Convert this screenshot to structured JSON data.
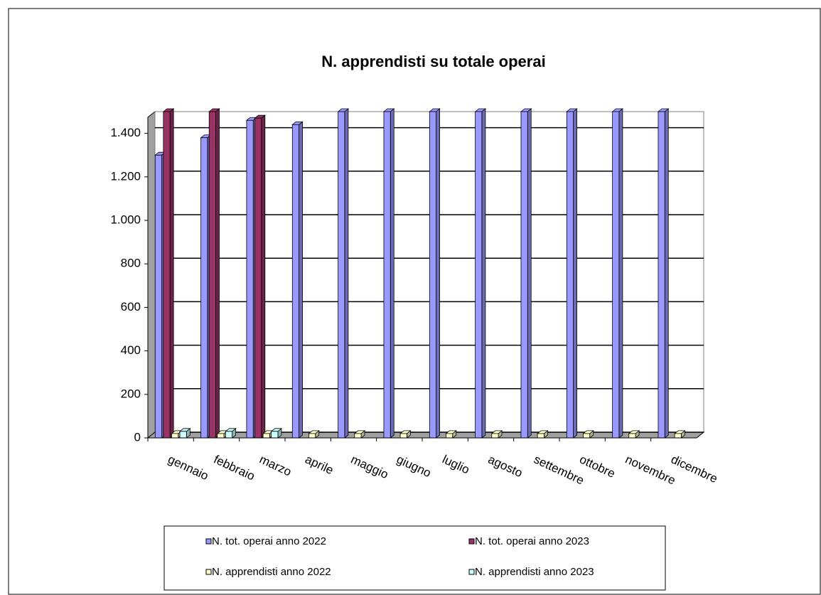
{
  "chart_data": {
    "type": "bar3d",
    "title": "N. apprendisti su totale operai",
    "categories": [
      "gennaio",
      "febbraio",
      "marzo",
      "aprile",
      "maggio",
      "giugno",
      "luglio",
      "agosto",
      "settembre",
      "ottobre",
      "novembre",
      "dicembre"
    ],
    "series": [
      {
        "name": "N. tot. operai anno 2022",
        "color": "#9999ff",
        "values": [
          1300,
          1380,
          1460,
          1440,
          1500,
          1500,
          1500,
          1500,
          1500,
          1500,
          1500,
          1500
        ]
      },
      {
        "name": "N. tot. operai anno 2023",
        "color": "#993366",
        "values": [
          1500,
          1500,
          1470,
          null,
          null,
          null,
          null,
          null,
          null,
          null,
          null,
          null
        ]
      },
      {
        "name": "N. apprendisti anno 2022",
        "color": "#ffffcc",
        "values": [
          20,
          20,
          20,
          20,
          20,
          20,
          20,
          20,
          20,
          20,
          20,
          20
        ]
      },
      {
        "name": "N. apprendisti anno 2023",
        "color": "#ccffff",
        "values": [
          30,
          30,
          30,
          null,
          null,
          null,
          null,
          null,
          null,
          null,
          null,
          null
        ]
      }
    ],
    "ylim": [
      0,
      1500
    ],
    "yticks": [
      0,
      200,
      400,
      600,
      800,
      {
        "value": 1000,
        "label": "1.000"
      },
      {
        "value": 1200,
        "label": "1.200"
      },
      {
        "value": 1400,
        "label": "1.400"
      }
    ],
    "grid": true
  }
}
